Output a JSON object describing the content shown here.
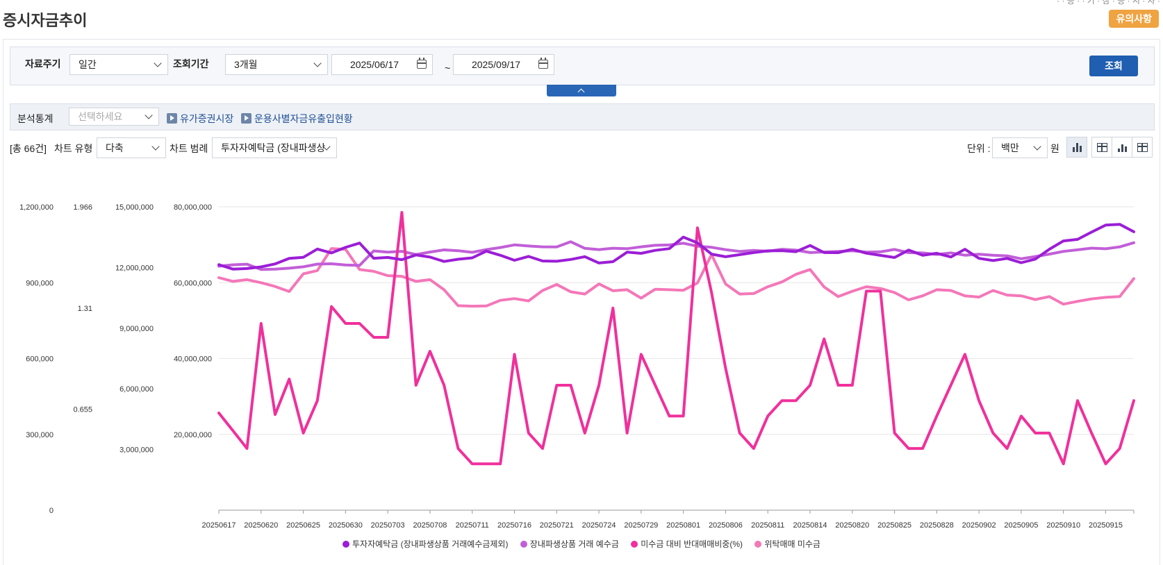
{
  "header": {
    "title": "증시자금추이",
    "crumb": "· · 증 · · 기 · 참 · 증 · 시 · 자 ·",
    "notice": "유의사항"
  },
  "search": {
    "period_label": "자료주기",
    "period_value": "일간",
    "range_label": "조회기간",
    "range_value": "3개월",
    "date_from": "2025/06/17",
    "tilde": "~",
    "date_to": "2025/09/17",
    "submit": "조회"
  },
  "analysis": {
    "label": "분석통계",
    "placeholder": "선택하세요",
    "links": [
      "유가증권시장",
      "운용사별자금유출입현황"
    ]
  },
  "toolbar": {
    "total": "[총 66건]",
    "chart_type_label": "차트 유형",
    "chart_type_value": "다축",
    "legend_label": "차트 범례",
    "legend_value": "투자자예탁금 (장내파생상",
    "unit_label": "단위 :",
    "unit_value": "백만",
    "unit_suffix": "원"
  },
  "colors": {
    "s1": "#9b1ed6",
    "s2": "#c15fd8",
    "s3": "#f0309c",
    "s4": "#f477b8",
    "grid": "#e6e6e6",
    "accent": "#1f5eb0"
  },
  "chart_data": {
    "type": "line",
    "title": "",
    "x": [
      "20250617",
      "20250618",
      "20250619",
      "20250620",
      "20250623",
      "20250624",
      "20250625",
      "20250626",
      "20250627",
      "20250630",
      "20250701",
      "20250702",
      "20250703",
      "20250704",
      "20250707",
      "20250708",
      "20250709",
      "20250710",
      "20250711",
      "20250714",
      "20250715",
      "20250716",
      "20250717",
      "20250718",
      "20250721",
      "20250722",
      "20250723",
      "20250724",
      "20250725",
      "20250728",
      "20250729",
      "20250730",
      "20250731",
      "20250801",
      "20250804",
      "20250805",
      "20250806",
      "20250807",
      "20250808",
      "20250811",
      "20250812",
      "20250813",
      "20250814",
      "20250818",
      "20250819",
      "20250820",
      "20250821",
      "20250822",
      "20250825",
      "20250826",
      "20250827",
      "20250828",
      "20250829",
      "20250901",
      "20250902",
      "20250903",
      "20250904",
      "20250905",
      "20250908",
      "20250909",
      "20250910",
      "20250911",
      "20250912",
      "20250915",
      "20250916",
      "20250917"
    ],
    "x_tick_labels": [
      "20250617",
      "20250620",
      "20250625",
      "20250630",
      "20250703",
      "20250708",
      "20250711",
      "20250716",
      "20250721",
      "20250724",
      "20250729",
      "20250801",
      "20250806",
      "20250811",
      "20250814",
      "20250820",
      "20250825",
      "20250828",
      "20250902",
      "20250905",
      "20250910",
      "20250915"
    ],
    "axes": [
      {
        "ticks": [
          "0",
          "300,000",
          "600,000",
          "900,000",
          "1,200,000"
        ],
        "range": [
          0,
          1200000
        ]
      },
      {
        "ticks": [
          "0.655",
          "1.31",
          "1.966"
        ],
        "range": [
          0,
          1.966
        ]
      },
      {
        "ticks": [
          "3,000,000",
          "6,000,000",
          "9,000,000",
          "12,000,000",
          "15,000,000"
        ],
        "range": [
          0,
          15000000
        ]
      },
      {
        "ticks": [
          "20,000,000",
          "40,000,000",
          "60,000,000",
          "80,000,000"
        ],
        "range": [
          0,
          80000000
        ]
      }
    ],
    "grid": true,
    "legend_position": "bottom",
    "series": [
      {
        "name": "투자자예탁금 (장내파생상품 거래예수금제외)",
        "axis": 3,
        "values": [
          64758000,
          63575000,
          63720000,
          64156000,
          64960000,
          66406000,
          66692000,
          68872000,
          67841000,
          69304000,
          70445000,
          66429000,
          66651000,
          66067000,
          67318000,
          66748000,
          65592000,
          66177000,
          66545000,
          68314000,
          67220000,
          65912000,
          66921000,
          65722000,
          65653000,
          66121000,
          66862000,
          65187000,
          65535000,
          68049000,
          67731000,
          68519000,
          68983000,
          72026000,
          70504000,
          67531000,
          66843000,
          67387000,
          67945000,
          68391000,
          68450000,
          68181000,
          69808000,
          67940000,
          67925000,
          68813000,
          67770000,
          67206000,
          66639000,
          68598000,
          67228000,
          67753000,
          66778000,
          68813000,
          66415000,
          65839000,
          66391000,
          65262000,
          66213000,
          68814000,
          71014000,
          71414000,
          73336000,
          75184000,
          75385000,
          73433000
        ]
      },
      {
        "name": "장내파생상품 거래 예수금",
        "axis": 2,
        "values": [
          12066000,
          12133000,
          12165000,
          11901000,
          11919000,
          11965000,
          12033000,
          12169000,
          12185000,
          12124000,
          12103000,
          12822000,
          12763000,
          12801000,
          12643000,
          12765000,
          12873000,
          12829000,
          12753000,
          12886000,
          12988000,
          13120000,
          13063000,
          13024000,
          13021000,
          13274000,
          12948000,
          12885000,
          12953000,
          12930000,
          13022000,
          13098000,
          13116000,
          13200000,
          13053000,
          12999000,
          12881000,
          12798000,
          12849000,
          12802000,
          12902000,
          12859000,
          12737000,
          12769000,
          12792000,
          12827000,
          12762000,
          12775000,
          12894000,
          12735000,
          12720000,
          12644000,
          12723000,
          12609000,
          12655000,
          12604000,
          12576000,
          12432000,
          12543000,
          12663000,
          12797000,
          12875000,
          12956000,
          12928000,
          13021000,
          13227000
        ]
      },
      {
        "name": "미수금 대비 반대매매비중(%)",
        "axis": 1,
        "values": [
          0.63,
          0.515,
          0.4,
          1.21,
          0.62,
          0.85,
          0.5,
          0.71,
          1.32,
          1.21,
          1.21,
          1.12,
          1.12,
          1.93,
          0.81,
          1.03,
          0.81,
          0.4,
          0.3,
          0.3,
          0.3,
          1.01,
          0.5,
          0.4,
          0.81,
          0.81,
          0.5,
          0.81,
          1.31,
          0.5,
          1.01,
          0.81,
          0.61,
          0.61,
          1.83,
          1.41,
          0.92,
          0.5,
          0.4,
          0.61,
          0.71,
          0.71,
          0.81,
          1.11,
          0.81,
          0.81,
          1.42,
          1.42,
          0.5,
          0.4,
          0.4,
          0.61,
          0.81,
          1.01,
          0.71,
          0.5,
          0.4,
          0.61,
          0.5,
          0.5,
          0.3,
          0.71,
          0.5,
          0.3,
          0.4,
          0.71
        ]
      },
      {
        "name": "위탁매매 미수금",
        "axis": 0,
        "values": [
          920000,
          905000,
          912000,
          900000,
          885000,
          865000,
          935000,
          948000,
          1035000,
          1032000,
          952000,
          945000,
          928000,
          925000,
          905000,
          912000,
          872000,
          809000,
          807000,
          808000,
          830000,
          837000,
          828000,
          869000,
          893000,
          864000,
          855000,
          895000,
          868000,
          872000,
          839000,
          874000,
          872000,
          870000,
          899000,
          1011000,
          895000,
          855000,
          857000,
          884000,
          903000,
          933000,
          952000,
          883000,
          845000,
          866000,
          884000,
          877000,
          861000,
          832000,
          848000,
          872000,
          869000,
          848000,
          843000,
          869000,
          851000,
          848000,
          833000,
          845000,
          815000,
          826000,
          836000,
          842000,
          845000,
          916000
        ]
      }
    ]
  }
}
